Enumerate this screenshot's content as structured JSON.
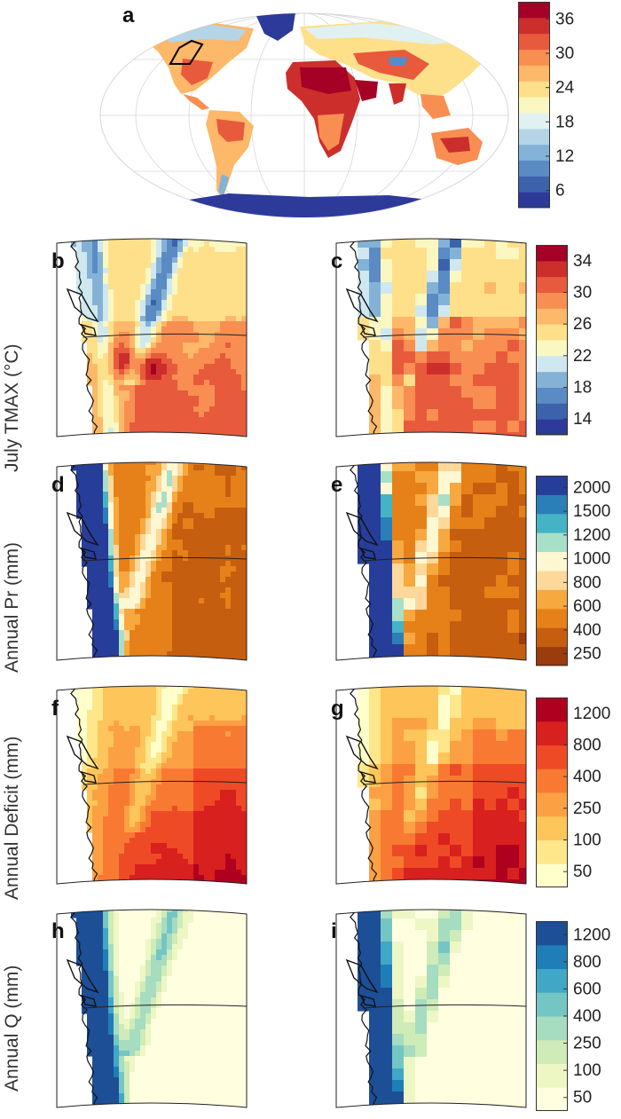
{
  "panels": {
    "a": "a",
    "b": "b",
    "c": "c",
    "d": "d",
    "e": "e",
    "f": "f",
    "g": "g",
    "h": "h",
    "i": "i"
  },
  "rows": [
    {
      "label": "July TMAX (°C)"
    },
    {
      "label": "Annual Pr (mm)"
    },
    {
      "label": "Annual Deficit (mm)"
    },
    {
      "label": "Annual Q (mm)"
    }
  ],
  "colorbars": {
    "world_tmax": {
      "colors": [
        "#2d3a9a",
        "#3d62ac",
        "#5b8bc4",
        "#84b2d6",
        "#b5d5e7",
        "#e1f1f1",
        "#fbf7c0",
        "#fee08b",
        "#fdb869",
        "#f88e52",
        "#e85a3c",
        "#cc2e2c",
        "#a50026"
      ],
      "ticks": [
        "36",
        "30",
        "24",
        "18",
        "12",
        "6"
      ]
    },
    "regional_tmax": {
      "colors": [
        "#2d3a9a",
        "#3d62ac",
        "#5b8bc4",
        "#84b2d6",
        "#cfe8f0",
        "#fbf7c0",
        "#fee08b",
        "#fdb869",
        "#f88e52",
        "#e85a3c",
        "#cc2e2c",
        "#a50026"
      ],
      "ticks": [
        "34",
        "30",
        "26",
        "22",
        "18",
        "14"
      ]
    },
    "precip": {
      "colors": [
        "#9a3c0c",
        "#c65e10",
        "#e58118",
        "#f7a83e",
        "#fdd89a",
        "#fef8d2",
        "#a8dfc9",
        "#45b3c6",
        "#2a7fb8",
        "#273d9a"
      ],
      "ticks": [
        "2000",
        "1500",
        "1200",
        "1000",
        "800",
        "600",
        "400",
        "250"
      ]
    },
    "deficit": {
      "colors": [
        "#ffffcc",
        "#fee68a",
        "#fdc55a",
        "#fca044",
        "#f87a32",
        "#ee4a26",
        "#d8201e",
        "#b0001f"
      ],
      "ticks": [
        "1200",
        "800",
        "400",
        "250",
        "100",
        "50"
      ]
    },
    "runoff": {
      "colors": [
        "#ffffe0",
        "#edf7c4",
        "#cfebb7",
        "#a6dcc0",
        "#74c6c4",
        "#41a7c7",
        "#1f7eb8",
        "#1d4f97"
      ],
      "ticks": [
        "1200",
        "800",
        "600",
        "400",
        "250",
        "100",
        "50"
      ]
    }
  }
}
